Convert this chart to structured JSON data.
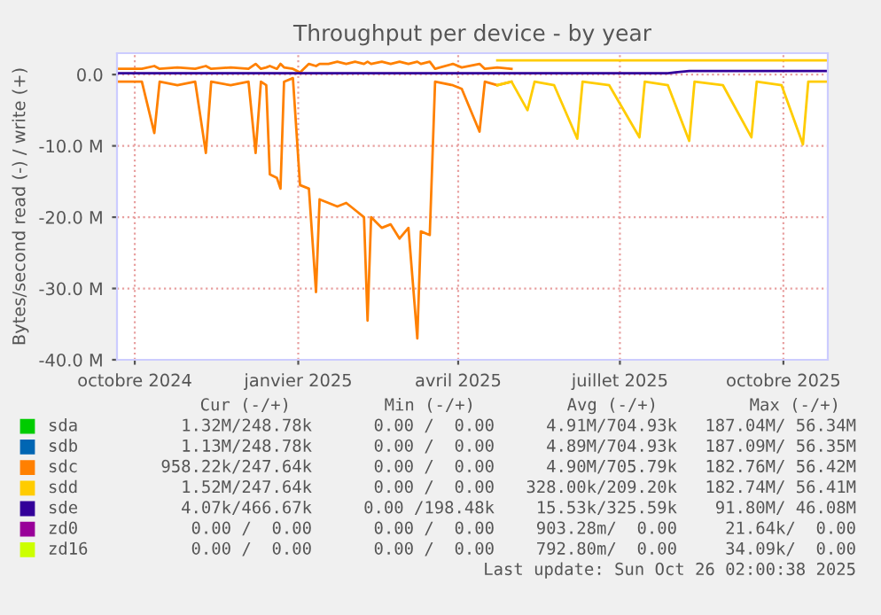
{
  "chart_data": {
    "type": "line",
    "title": "Throughput per device - by year",
    "ylabel": "Bytes/second read (-) / write (+)",
    "x": [
      "2024-09-21",
      "2024-10-05",
      "2024-10-12",
      "2024-10-15",
      "2024-10-25",
      "2024-11-04",
      "2024-11-10",
      "2024-11-13",
      "2024-11-24",
      "2024-12-04",
      "2024-12-08",
      "2024-12-11",
      "2024-12-14",
      "2024-12-16",
      "2024-12-20",
      "2024-12-22",
      "2024-12-24",
      "2024-12-29",
      "2025-01-02",
      "2025-01-07",
      "2025-01-11",
      "2025-01-13",
      "2025-01-18",
      "2025-01-23",
      "2025-01-28",
      "2025-02-02",
      "2025-02-07",
      "2025-02-09",
      "2025-02-11",
      "2025-02-17",
      "2025-02-22",
      "2025-02-27",
      "2025-03-04",
      "2025-03-09",
      "2025-03-11",
      "2025-03-16",
      "2025-03-19",
      "2025-03-29",
      "2025-04-03",
      "2025-04-13",
      "2025-04-16",
      "2025-04-23",
      "2025-05-01",
      "2025-05-10",
      "2025-05-14",
      "2025-05-25",
      "2025-06-07",
      "2025-06-10",
      "2025-06-25",
      "2025-07-12",
      "2025-07-15",
      "2025-07-28",
      "2025-08-09",
      "2025-08-12",
      "2025-08-28",
      "2025-09-13",
      "2025-09-16",
      "2025-09-30",
      "2025-10-12",
      "2025-10-15",
      "2025-10-26"
    ],
    "series": [
      {
        "name": "sda",
        "color": "#00cc00",
        "values": [
          null,
          null,
          null,
          null,
          null,
          null,
          null,
          null,
          null,
          null,
          null,
          null,
          null,
          null,
          null,
          null,
          null,
          null,
          null,
          null,
          null,
          null,
          null,
          null,
          null,
          null,
          null,
          null,
          null,
          null,
          null,
          null,
          null,
          null,
          null,
          null,
          null,
          null,
          null,
          null,
          null,
          null,
          null,
          null,
          null,
          null,
          null,
          null,
          null,
          null,
          null,
          null,
          null,
          null,
          null,
          null,
          null,
          null,
          null,
          null,
          null
        ]
      },
      {
        "name": "sdb",
        "color": "#0066b3",
        "values": [
          null,
          null,
          null,
          null,
          null,
          null,
          null,
          null,
          null,
          null,
          null,
          null,
          null,
          null,
          null,
          null,
          null,
          null,
          null,
          null,
          null,
          null,
          null,
          null,
          null,
          null,
          null,
          null,
          null,
          null,
          null,
          null,
          null,
          null,
          null,
          null,
          null,
          null,
          null,
          null,
          null,
          null,
          null,
          null,
          null,
          null,
          null,
          null,
          null,
          null,
          null,
          null,
          null,
          null,
          null,
          null,
          null,
          null,
          null,
          null,
          null
        ]
      },
      {
        "name": "sdc",
        "color": "#ff8000",
        "values": [
          -1000000,
          -1000000,
          -8200000,
          -1000000,
          -1500000,
          -1000000,
          -11000000,
          -1000000,
          -1500000,
          -1000000,
          -11000000,
          -1000000,
          -1500000,
          -14000000,
          -14500000,
          -16000000,
          -1000000,
          -500000,
          -15500000,
          -16000000,
          -30500000,
          -17500000,
          -18000000,
          -18500000,
          -18000000,
          -19000000,
          -20000000,
          -34500000,
          -20000000,
          -21500000,
          -21000000,
          -23000000,
          -21500000,
          -37000000,
          -22000000,
          -22500000,
          -1000000,
          -1500000,
          -2000000,
          -8000000,
          -1000000,
          -1500000,
          -1000000,
          null,
          null,
          null,
          null,
          null,
          null,
          null,
          null,
          null,
          null,
          null,
          null,
          null,
          null,
          null,
          null,
          null,
          null
        ]
      },
      {
        "color": "#ff8000",
        "values": [
          800000,
          800000,
          1200000,
          800000,
          1000000,
          800000,
          1200000,
          800000,
          1000000,
          800000,
          1500000,
          800000,
          1000000,
          1200000,
          800000,
          1500000,
          1000000,
          800000,
          300000,
          1500000,
          1200000,
          1500000,
          1500000,
          1800000,
          1500000,
          1800000,
          1500000,
          1800000,
          1500000,
          1800000,
          1500000,
          1800000,
          1500000,
          1800000,
          1500000,
          1800000,
          800000,
          1500000,
          1000000,
          1500000,
          800000,
          1000000,
          800000,
          null,
          null,
          null,
          null,
          null,
          null,
          null,
          null,
          null,
          null,
          null,
          null,
          null,
          null,
          null,
          null,
          null,
          null
        ]
      },
      {
        "name": "sdd",
        "color": "#ffcc00",
        "values": [
          null,
          null,
          null,
          null,
          null,
          null,
          null,
          null,
          null,
          null,
          null,
          null,
          null,
          null,
          null,
          null,
          null,
          null,
          null,
          null,
          null,
          null,
          null,
          null,
          null,
          null,
          null,
          null,
          null,
          null,
          null,
          null,
          null,
          null,
          null,
          null,
          null,
          null,
          null,
          null,
          null,
          -1500000,
          -1000000,
          -5000000,
          -1000000,
          -1500000,
          -9000000,
          -1000000,
          -1500000,
          -8800000,
          -1000000,
          -1500000,
          -9300000,
          -1000000,
          -1500000,
          -8800000,
          -1000000,
          -1500000,
          -9800000,
          -1000000,
          -1000000
        ]
      },
      {
        "color": "#ffcc00",
        "values": [
          null,
          null,
          null,
          null,
          null,
          null,
          null,
          null,
          null,
          null,
          null,
          null,
          null,
          null,
          null,
          null,
          null,
          null,
          null,
          null,
          null,
          null,
          null,
          null,
          null,
          null,
          null,
          null,
          null,
          null,
          null,
          null,
          null,
          null,
          null,
          null,
          null,
          null,
          null,
          null,
          null,
          2000000,
          2000000,
          2000000,
          2000000,
          2000000,
          2000000,
          2000000,
          2000000,
          2000000,
          2000000,
          2000000,
          2000000,
          2000000,
          2000000,
          2000000,
          2000000,
          2000000,
          2000000,
          2000000,
          2000000
        ]
      },
      {
        "name": "sde",
        "color": "#330099",
        "values": [
          200000,
          200000,
          200000,
          200000,
          200000,
          200000,
          200000,
          200000,
          200000,
          200000,
          200000,
          200000,
          200000,
          200000,
          200000,
          200000,
          200000,
          200000,
          200000,
          200000,
          200000,
          200000,
          200000,
          200000,
          200000,
          200000,
          200000,
          200000,
          200000,
          200000,
          200000,
          200000,
          200000,
          200000,
          200000,
          200000,
          200000,
          200000,
          200000,
          200000,
          200000,
          200000,
          200000,
          200000,
          200000,
          200000,
          200000,
          200000,
          200000,
          200000,
          200000,
          200000,
          500000,
          500000,
          500000,
          500000,
          500000,
          500000,
          500000,
          500000,
          500000
        ]
      },
      {
        "name": "zd0",
        "color": "#990099",
        "values": [
          null,
          null,
          null,
          null,
          null,
          null,
          null,
          null,
          null,
          null,
          null,
          null,
          null,
          null,
          null,
          null,
          null,
          null,
          null,
          null,
          null,
          null,
          null,
          null,
          null,
          null,
          null,
          null,
          null,
          null,
          null,
          null,
          null,
          null,
          null,
          null,
          null,
          null,
          null,
          null,
          null,
          null,
          null,
          null,
          null,
          null,
          null,
          null,
          null,
          null,
          null,
          null,
          null,
          null,
          null,
          null,
          null,
          null,
          null,
          null,
          null
        ]
      },
      {
        "name": "zd16",
        "color": "#ccff00",
        "values": [
          null,
          null,
          null,
          null,
          null,
          null,
          null,
          null,
          null,
          null,
          null,
          null,
          null,
          null,
          null,
          null,
          null,
          null,
          null,
          null,
          null,
          null,
          null,
          null,
          null,
          null,
          null,
          null,
          null,
          null,
          null,
          null,
          null,
          null,
          null,
          null,
          null,
          null,
          null,
          null,
          null,
          null,
          null,
          null,
          null,
          null,
          null,
          null,
          null,
          null,
          null,
          null,
          null,
          null,
          null,
          null,
          null,
          null,
          null,
          null,
          null
        ]
      }
    ],
    "xlim": [
      "2024-09-21",
      "2025-10-26"
    ],
    "xticks": [
      {
        "value": "2024-10-01",
        "label": "octobre 2024"
      },
      {
        "value": "2025-01-01",
        "label": "janvier 2025"
      },
      {
        "value": "2025-04-01",
        "label": "avril 2025"
      },
      {
        "value": "2025-07-01",
        "label": "juillet 2025"
      },
      {
        "value": "2025-10-01",
        "label": "octobre 2025"
      }
    ],
    "ylim": [
      -40000000,
      3000000
    ],
    "yticks": [
      {
        "value": 0,
        "label": "0.0"
      },
      {
        "value": -10000000,
        "label": "-10.0 M"
      },
      {
        "value": -20000000,
        "label": "-20.0 M"
      },
      {
        "value": -30000000,
        "label": "-30.0 M"
      },
      {
        "value": -40000000,
        "label": "-40.0 M"
      }
    ],
    "grid": true,
    "legend": "bottom",
    "annotations": [
      "Cur (-/+)",
      "Min (-/+)",
      "Avg (-/+)",
      "Max (-/+)",
      "1.32M/248.78k",
      "0.00 /  0.00",
      "4.91M/704.93k",
      "187.04M/ 56.34M",
      "1.13M/248.78k",
      "0.00 /  0.00",
      "4.89M/704.93k",
      "187.09M/ 56.35M",
      "958.22k/247.64k",
      "0.00 /  0.00",
      "4.90M/705.79k",
      "182.76M/ 56.42M",
      "1.52M/247.64k",
      "0.00 /  0.00",
      "328.00k/209.20k",
      "182.74M/ 56.41M",
      "4.07k/466.67k",
      "0.00 /198.48k",
      "15.53k/325.59k",
      "91.80M/ 46.08M",
      "0.00 /  0.00",
      "0.00 /  0.00",
      "903.28m/  0.00",
      "21.64k/  0.00",
      "0.00 /  0.00",
      "0.00 /  0.00",
      "792.80m/  0.00",
      "34.09k/  0.00",
      "Last update: Sun Oct 26 02:00:38 2025"
    ]
  }
}
